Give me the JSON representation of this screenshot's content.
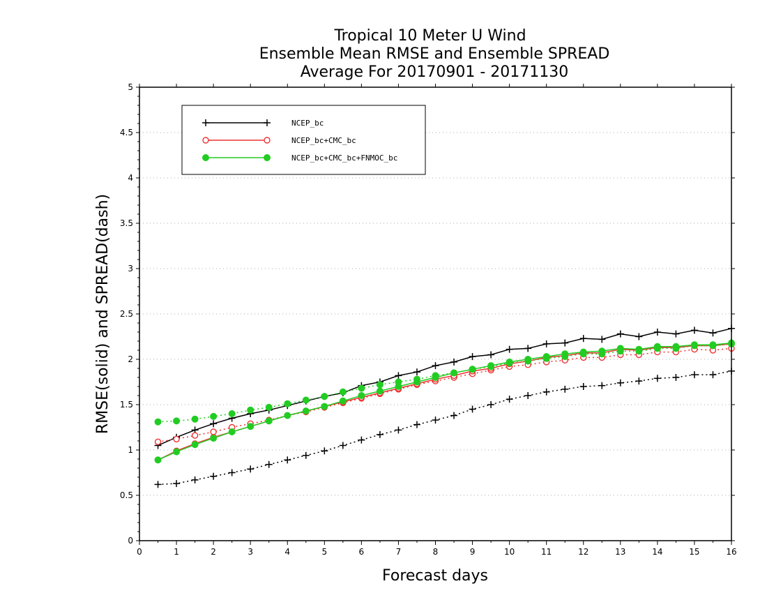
{
  "chart_data": {
    "type": "line",
    "title_lines": [
      "Tropical 10 Meter U Wind",
      "Ensemble Mean RMSE and Ensemble SPREAD",
      "Average For 20170901 - 20171130"
    ],
    "xlabel": "Forecast days",
    "ylabel": "RMSE(solid) and SPREAD(dash)",
    "xlim": [
      0,
      16
    ],
    "ylim": [
      0,
      5
    ],
    "x_ticks": [
      "0",
      "1",
      "2",
      "3",
      "4",
      "5",
      "6",
      "7",
      "8",
      "9",
      "10",
      "11",
      "12",
      "13",
      "14",
      "15",
      "16"
    ],
    "y_ticks": [
      "0",
      "0.5",
      "1",
      "1.5",
      "2",
      "2.5",
      "3",
      "3.5",
      "4",
      "4.5",
      "5"
    ],
    "grid": "horizontal dotted",
    "legend_position": "top-left",
    "x": [
      0.5,
      1,
      1.5,
      2,
      2.5,
      3,
      3.5,
      4,
      4.5,
      5,
      5.5,
      6,
      6.5,
      7,
      7.5,
      8,
      8.5,
      9,
      9.5,
      10,
      10.5,
      11,
      11.5,
      12,
      12.5,
      13,
      13.5,
      14,
      14.5,
      15,
      15.5,
      16
    ],
    "series": [
      {
        "name": "NCEP_bc",
        "color": "#000000",
        "marker": "plus",
        "rmse": [
          1.05,
          1.14,
          1.22,
          1.29,
          1.35,
          1.4,
          1.44,
          1.49,
          1.54,
          1.59,
          1.63,
          1.71,
          1.75,
          1.82,
          1.86,
          1.93,
          1.97,
          2.03,
          2.05,
          2.11,
          2.12,
          2.17,
          2.18,
          2.23,
          2.22,
          2.28,
          2.25,
          2.3,
          2.28,
          2.32,
          2.29,
          2.34
        ],
        "spread": [
          0.62,
          0.63,
          0.67,
          0.71,
          0.75,
          0.79,
          0.84,
          0.89,
          0.94,
          0.99,
          1.05,
          1.11,
          1.17,
          1.22,
          1.28,
          1.33,
          1.38,
          1.45,
          1.5,
          1.56,
          1.6,
          1.64,
          1.67,
          1.7,
          1.71,
          1.74,
          1.76,
          1.79,
          1.8,
          1.83,
          1.83,
          1.87
        ]
      },
      {
        "name": "NCEP_bc+CMC_bc",
        "color": "#ee3333",
        "marker": "open-circle",
        "rmse": [
          0.89,
          0.99,
          1.07,
          1.14,
          1.2,
          1.26,
          1.32,
          1.38,
          1.43,
          1.48,
          1.53,
          1.58,
          1.63,
          1.68,
          1.73,
          1.78,
          1.82,
          1.87,
          1.9,
          1.95,
          1.98,
          2.02,
          2.04,
          2.07,
          2.07,
          2.11,
          2.1,
          2.13,
          2.13,
          2.15,
          2.15,
          2.17
        ],
        "spread": [
          1.09,
          1.12,
          1.16,
          1.2,
          1.25,
          1.29,
          1.33,
          1.38,
          1.42,
          1.47,
          1.52,
          1.57,
          1.62,
          1.67,
          1.72,
          1.76,
          1.8,
          1.84,
          1.88,
          1.92,
          1.94,
          1.97,
          1.99,
          2.02,
          2.02,
          2.05,
          2.05,
          2.08,
          2.08,
          2.11,
          2.1,
          2.12
        ]
      },
      {
        "name": "NCEP_bc+CMC_bc+FNMOC_bc",
        "color": "#22cc22",
        "marker": "filled-circle",
        "rmse": [
          0.89,
          0.98,
          1.06,
          1.13,
          1.2,
          1.26,
          1.32,
          1.38,
          1.43,
          1.48,
          1.54,
          1.6,
          1.65,
          1.7,
          1.75,
          1.8,
          1.85,
          1.89,
          1.93,
          1.97,
          2.0,
          2.03,
          2.06,
          2.08,
          2.09,
          2.12,
          2.11,
          2.14,
          2.14,
          2.16,
          2.16,
          2.18
        ],
        "spread": [
          1.31,
          1.32,
          1.34,
          1.37,
          1.4,
          1.44,
          1.47,
          1.51,
          1.55,
          1.59,
          1.64,
          1.68,
          1.72,
          1.75,
          1.78,
          1.82,
          1.85,
          1.89,
          1.92,
          1.96,
          1.98,
          2.01,
          2.03,
          2.06,
          2.06,
          2.09,
          2.09,
          2.12,
          2.12,
          2.15,
          2.15,
          2.17
        ]
      }
    ]
  }
}
